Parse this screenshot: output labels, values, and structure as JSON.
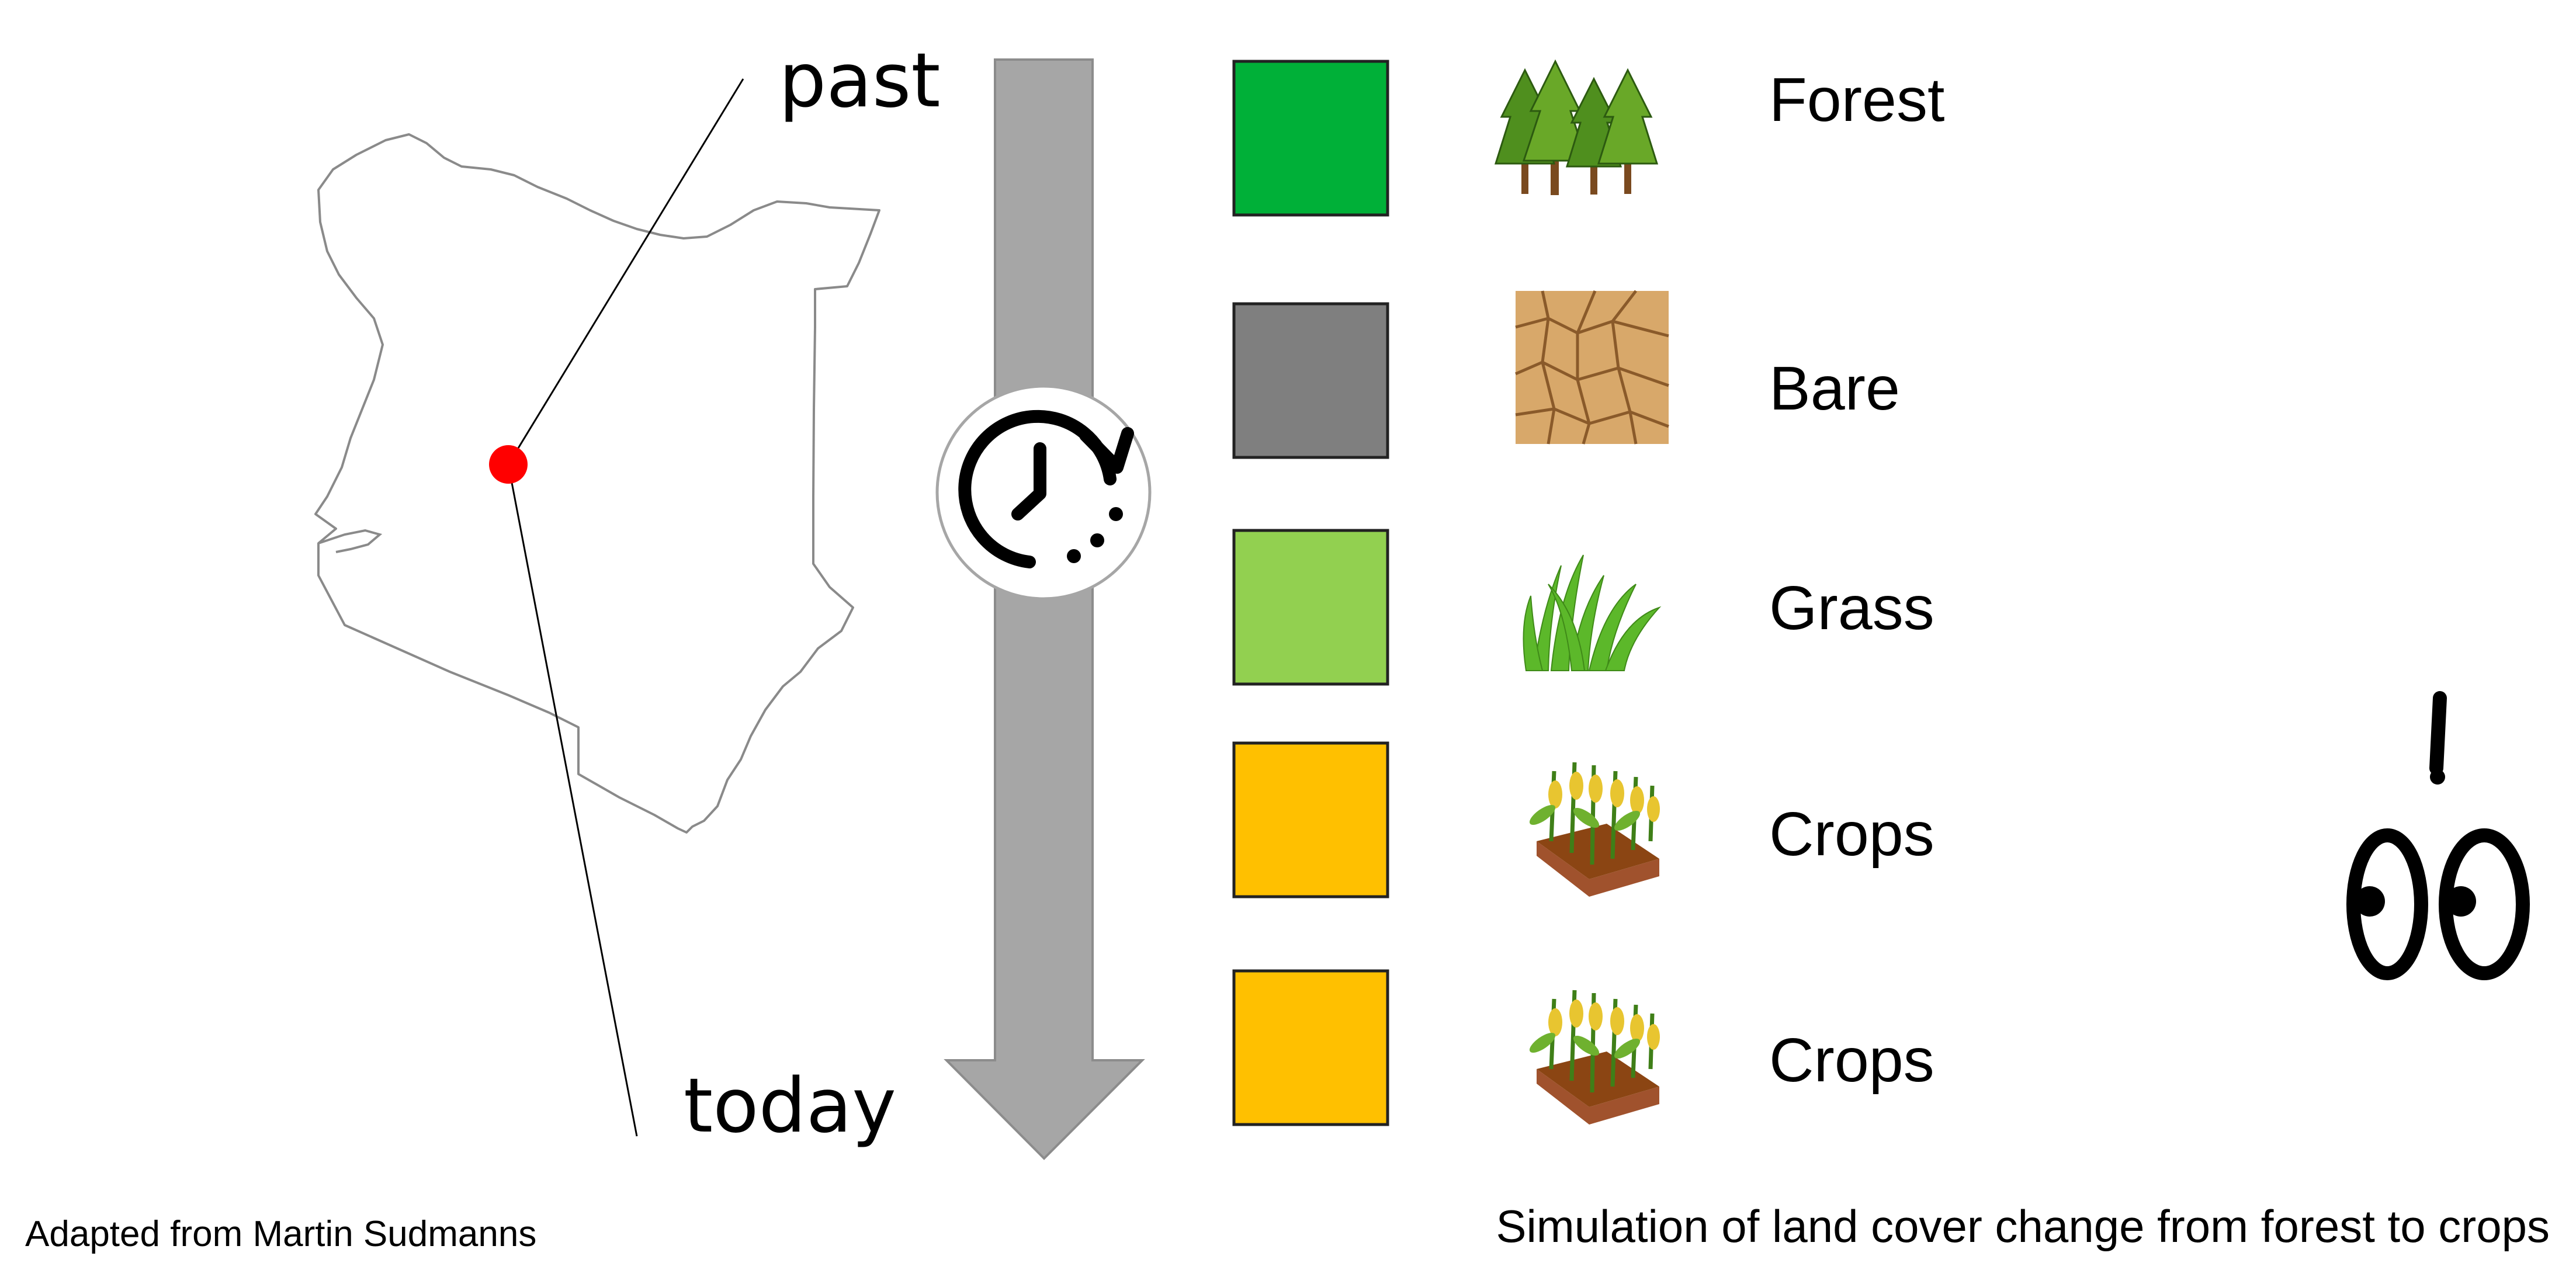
{
  "timeline": {
    "start_label": "past",
    "end_label": "today"
  },
  "classes": [
    {
      "label": "Forest",
      "color": "#00b038",
      "icon": "forest-icon"
    },
    {
      "label": "Bare",
      "color": "#7f7f7f",
      "icon": "cracked-soil-icon"
    },
    {
      "label": "Grass",
      "color": "#92d050",
      "icon": "grass-icon"
    },
    {
      "label": "Crops",
      "color": "#ffc000",
      "icon": "crops-icon"
    },
    {
      "label": "Crops",
      "color": "#ffc000",
      "icon": "crops-icon"
    }
  ],
  "marker_color": "#ff0000",
  "arrow_color": "#a6a6a6",
  "captions": {
    "credit": "Adapted from Martin Sudmanns",
    "title": "Simulation of land cover change from forest to crops"
  }
}
